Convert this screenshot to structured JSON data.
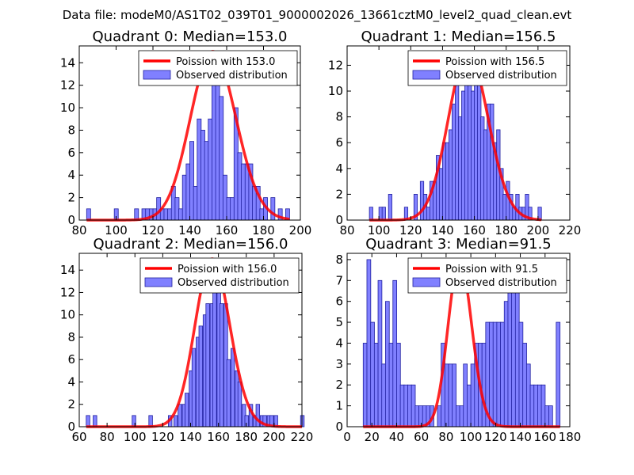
{
  "figure_title": "Data file: modeM0/AS1T02_039T01_9000002026_13661cztM0_level2_quad_clean.evt",
  "colors": {
    "bar_fill": "#8080ff",
    "bar_edge": "#2020a0",
    "curve": "#ff0000",
    "axis": "#000000"
  },
  "chart_data": [
    {
      "type": "bar",
      "title": "Quadrant 0: Median=153.0",
      "median": 153.0,
      "xlim": [
        80,
        200
      ],
      "ylim": [
        0,
        15.5
      ],
      "xticks": [
        80,
        100,
        120,
        140,
        160,
        180,
        200
      ],
      "yticks": [
        0,
        2,
        4,
        6,
        8,
        10,
        12,
        14
      ],
      "bin_width": 2.17,
      "bins": [
        [
          84,
          1
        ],
        [
          99,
          1
        ],
        [
          110,
          1
        ],
        [
          114,
          1
        ],
        [
          116,
          1
        ],
        [
          118,
          1
        ],
        [
          120,
          1
        ],
        [
          122,
          2
        ],
        [
          124,
          1
        ],
        [
          126,
          1
        ],
        [
          128,
          1
        ],
        [
          130,
          3
        ],
        [
          132,
          2
        ],
        [
          134,
          1
        ],
        [
          136,
          4
        ],
        [
          138,
          5
        ],
        [
          140,
          7
        ],
        [
          142,
          3
        ],
        [
          144,
          9
        ],
        [
          146,
          8
        ],
        [
          148,
          7
        ],
        [
          150,
          9
        ],
        [
          152,
          14
        ],
        [
          154,
          15
        ],
        [
          156,
          11
        ],
        [
          158,
          4
        ],
        [
          160,
          2
        ],
        [
          162,
          2
        ],
        [
          164,
          10
        ],
        [
          166,
          6
        ],
        [
          168,
          5
        ],
        [
          170,
          5
        ],
        [
          172,
          5
        ],
        [
          174,
          3
        ],
        [
          176,
          3
        ],
        [
          178,
          1
        ],
        [
          180,
          2
        ],
        [
          184,
          2
        ],
        [
          188,
          1
        ],
        [
          192,
          1
        ]
      ],
      "curve": {
        "label": "Poission with 153.0",
        "lambda": 153.0,
        "scale": 15.0
      },
      "legend": {
        "entries": [
          "Poission with 153.0",
          "Observed distribution"
        ],
        "loc": "upper right"
      }
    },
    {
      "type": "bar",
      "title": "Quadrant 1: Median=156.5",
      "median": 156.5,
      "xlim": [
        80,
        220
      ],
      "ylim": [
        0,
        13.5
      ],
      "xticks": [
        80,
        100,
        120,
        140,
        160,
        180,
        200,
        220
      ],
      "yticks": [
        0,
        2,
        4,
        6,
        8,
        10,
        12
      ],
      "bin_width": 2.17,
      "bins": [
        [
          94,
          1
        ],
        [
          100,
          1
        ],
        [
          102,
          1
        ],
        [
          106,
          2
        ],
        [
          116,
          1
        ],
        [
          122,
          2
        ],
        [
          126,
          3
        ],
        [
          128,
          2
        ],
        [
          130,
          1
        ],
        [
          132,
          3
        ],
        [
          134,
          3
        ],
        [
          136,
          5
        ],
        [
          138,
          4
        ],
        [
          140,
          6
        ],
        [
          142,
          6
        ],
        [
          144,
          7
        ],
        [
          146,
          9
        ],
        [
          148,
          11
        ],
        [
          150,
          8
        ],
        [
          152,
          10
        ],
        [
          154,
          13
        ],
        [
          156,
          12
        ],
        [
          158,
          10
        ],
        [
          160,
          13
        ],
        [
          162,
          12
        ],
        [
          164,
          8
        ],
        [
          166,
          7
        ],
        [
          168,
          9
        ],
        [
          170,
          9
        ],
        [
          172,
          6
        ],
        [
          174,
          7
        ],
        [
          176,
          4
        ],
        [
          178,
          2
        ],
        [
          180,
          3
        ],
        [
          182,
          2
        ],
        [
          184,
          1
        ],
        [
          186,
          2
        ],
        [
          188,
          1
        ],
        [
          190,
          1
        ],
        [
          192,
          2
        ],
        [
          194,
          1
        ],
        [
          200,
          1
        ]
      ],
      "curve": {
        "label": "Poission with 156.5",
        "lambda": 156.5,
        "scale": 13.0
      },
      "legend": {
        "entries": [
          "Poission with 156.5",
          "Observed distribution"
        ],
        "loc": "upper right"
      }
    },
    {
      "type": "bar",
      "title": "Quadrant 2: Median=156.0",
      "median": 156.0,
      "xlim": [
        60,
        220
      ],
      "ylim": [
        0,
        15.5
      ],
      "xticks": [
        60,
        80,
        100,
        120,
        140,
        160,
        180,
        200,
        220
      ],
      "yticks": [
        0,
        2,
        4,
        6,
        8,
        10,
        12,
        14
      ],
      "bin_width": 2.6,
      "bins": [
        [
          65,
          1
        ],
        [
          70,
          1
        ],
        [
          98,
          1
        ],
        [
          110,
          1
        ],
        [
          124,
          1
        ],
        [
          128,
          1
        ],
        [
          131,
          2
        ],
        [
          134,
          2
        ],
        [
          136,
          3
        ],
        [
          139,
          5
        ],
        [
          141,
          7
        ],
        [
          144,
          8
        ],
        [
          146,
          9
        ],
        [
          149,
          10
        ],
        [
          151,
          11
        ],
        [
          154,
          11
        ],
        [
          156,
          15
        ],
        [
          159,
          13
        ],
        [
          161,
          11
        ],
        [
          164,
          11
        ],
        [
          166,
          6
        ],
        [
          169,
          7
        ],
        [
          172,
          5
        ],
        [
          174,
          4
        ],
        [
          177,
          2
        ],
        [
          179,
          1
        ],
        [
          182,
          2
        ],
        [
          185,
          1
        ],
        [
          187,
          2
        ],
        [
          190,
          1
        ],
        [
          192,
          1
        ],
        [
          195,
          1
        ],
        [
          197,
          1
        ],
        [
          200,
          1
        ],
        [
          219,
          1
        ]
      ],
      "curve": {
        "label": "Poission with 156.0",
        "lambda": 156.0,
        "scale": 15.0
      },
      "legend": {
        "entries": [
          "Poission with 156.0",
          "Observed distribution"
        ],
        "loc": "upper right"
      }
    },
    {
      "type": "bar",
      "title": "Quadrant 3: Median=91.5",
      "median": 91.5,
      "xlim": [
        0,
        180
      ],
      "ylim": [
        0,
        8.3
      ],
      "xticks": [
        0,
        20,
        40,
        60,
        80,
        100,
        120,
        140,
        160,
        180
      ],
      "xtick_labels": [
        "0",
        "20",
        "40",
        "60",
        "80",
        "100",
        "120",
        "140",
        "160",
        "180"
      ],
      "yticks": [
        0,
        1,
        2,
        3,
        4,
        5,
        6,
        7,
        8
      ],
      "bin_width": 3.1,
      "bins": [
        [
          13,
          4
        ],
        [
          16,
          8
        ],
        [
          19,
          5
        ],
        [
          22,
          4
        ],
        [
          25,
          7
        ],
        [
          28,
          3
        ],
        [
          31,
          6
        ],
        [
          34,
          4
        ],
        [
          37,
          7
        ],
        [
          40,
          4
        ],
        [
          43,
          2
        ],
        [
          46,
          2
        ],
        [
          49,
          2
        ],
        [
          52,
          2
        ],
        [
          55,
          1
        ],
        [
          58,
          1
        ],
        [
          61,
          1
        ],
        [
          64,
          1
        ],
        [
          67,
          1
        ],
        [
          73,
          1
        ],
        [
          76,
          4
        ],
        [
          79,
          3
        ],
        [
          82,
          3
        ],
        [
          85,
          3
        ],
        [
          88,
          1
        ],
        [
          91,
          1
        ],
        [
          94,
          3
        ],
        [
          97,
          2
        ],
        [
          100,
          3
        ],
        [
          103,
          4
        ],
        [
          106,
          4
        ],
        [
          109,
          4
        ],
        [
          112,
          5
        ],
        [
          115,
          5
        ],
        [
          118,
          5
        ],
        [
          121,
          5
        ],
        [
          124,
          5
        ],
        [
          127,
          6
        ],
        [
          130,
          7
        ],
        [
          133,
          7
        ],
        [
          136,
          7
        ],
        [
          139,
          5
        ],
        [
          142,
          4
        ],
        [
          145,
          3
        ],
        [
          148,
          2
        ],
        [
          151,
          2
        ],
        [
          154,
          2
        ],
        [
          157,
          2
        ],
        [
          160,
          1
        ],
        [
          163,
          1
        ],
        [
          169,
          5
        ]
      ],
      "curve": {
        "label": "Poission with 91.5",
        "lambda": 91.5,
        "scale": 8.0
      },
      "legend": {
        "entries": [
          "Poission with 91.5",
          "Observed distribution"
        ],
        "loc": "upper right"
      }
    }
  ]
}
